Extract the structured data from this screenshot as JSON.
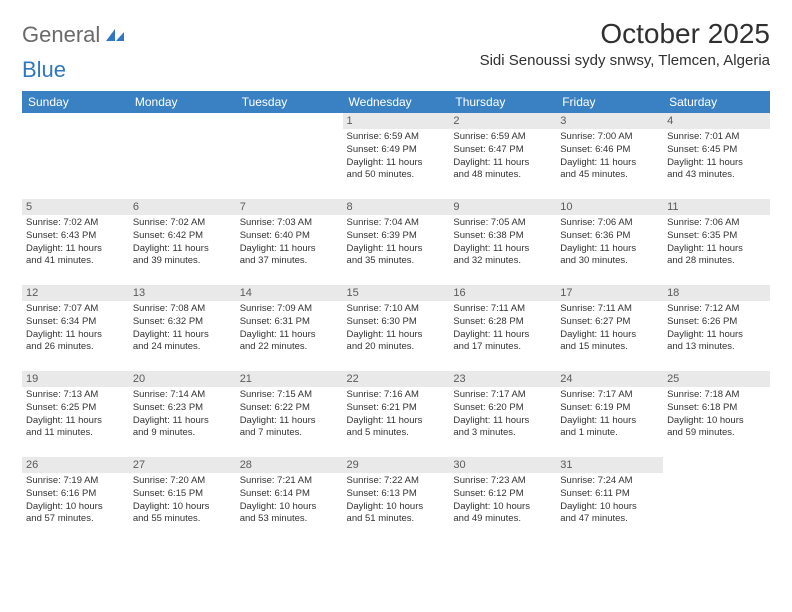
{
  "brand": {
    "part1": "General",
    "part2": "Blue"
  },
  "title": "October 2025",
  "location": "Sidi Senoussi sydy snwsy, Tlemcen, Algeria",
  "colors": {
    "header_bg": "#3a81c4",
    "header_text": "#ffffff",
    "daynum_bg": "#e9e9ea",
    "body_text": "#333333",
    "brand_gray": "#6a6a6a",
    "brand_blue": "#2f78bf",
    "page_bg": "#ffffff"
  },
  "fonts": {
    "title_size": 28,
    "location_size": 15,
    "dayhead_size": 12,
    "daynum_size": 11,
    "body_size": 9.5
  },
  "weekdays": [
    "Sunday",
    "Monday",
    "Tuesday",
    "Wednesday",
    "Thursday",
    "Friday",
    "Saturday"
  ],
  "weeks": [
    [
      null,
      null,
      null,
      {
        "n": "1",
        "sr": "Sunrise: 6:59 AM",
        "ss": "Sunset: 6:49 PM",
        "d1": "Daylight: 11 hours",
        "d2": "and 50 minutes."
      },
      {
        "n": "2",
        "sr": "Sunrise: 6:59 AM",
        "ss": "Sunset: 6:47 PM",
        "d1": "Daylight: 11 hours",
        "d2": "and 48 minutes."
      },
      {
        "n": "3",
        "sr": "Sunrise: 7:00 AM",
        "ss": "Sunset: 6:46 PM",
        "d1": "Daylight: 11 hours",
        "d2": "and 45 minutes."
      },
      {
        "n": "4",
        "sr": "Sunrise: 7:01 AM",
        "ss": "Sunset: 6:45 PM",
        "d1": "Daylight: 11 hours",
        "d2": "and 43 minutes."
      }
    ],
    [
      {
        "n": "5",
        "sr": "Sunrise: 7:02 AM",
        "ss": "Sunset: 6:43 PM",
        "d1": "Daylight: 11 hours",
        "d2": "and 41 minutes."
      },
      {
        "n": "6",
        "sr": "Sunrise: 7:02 AM",
        "ss": "Sunset: 6:42 PM",
        "d1": "Daylight: 11 hours",
        "d2": "and 39 minutes."
      },
      {
        "n": "7",
        "sr": "Sunrise: 7:03 AM",
        "ss": "Sunset: 6:40 PM",
        "d1": "Daylight: 11 hours",
        "d2": "and 37 minutes."
      },
      {
        "n": "8",
        "sr": "Sunrise: 7:04 AM",
        "ss": "Sunset: 6:39 PM",
        "d1": "Daylight: 11 hours",
        "d2": "and 35 minutes."
      },
      {
        "n": "9",
        "sr": "Sunrise: 7:05 AM",
        "ss": "Sunset: 6:38 PM",
        "d1": "Daylight: 11 hours",
        "d2": "and 32 minutes."
      },
      {
        "n": "10",
        "sr": "Sunrise: 7:06 AM",
        "ss": "Sunset: 6:36 PM",
        "d1": "Daylight: 11 hours",
        "d2": "and 30 minutes."
      },
      {
        "n": "11",
        "sr": "Sunrise: 7:06 AM",
        "ss": "Sunset: 6:35 PM",
        "d1": "Daylight: 11 hours",
        "d2": "and 28 minutes."
      }
    ],
    [
      {
        "n": "12",
        "sr": "Sunrise: 7:07 AM",
        "ss": "Sunset: 6:34 PM",
        "d1": "Daylight: 11 hours",
        "d2": "and 26 minutes."
      },
      {
        "n": "13",
        "sr": "Sunrise: 7:08 AM",
        "ss": "Sunset: 6:32 PM",
        "d1": "Daylight: 11 hours",
        "d2": "and 24 minutes."
      },
      {
        "n": "14",
        "sr": "Sunrise: 7:09 AM",
        "ss": "Sunset: 6:31 PM",
        "d1": "Daylight: 11 hours",
        "d2": "and 22 minutes."
      },
      {
        "n": "15",
        "sr": "Sunrise: 7:10 AM",
        "ss": "Sunset: 6:30 PM",
        "d1": "Daylight: 11 hours",
        "d2": "and 20 minutes."
      },
      {
        "n": "16",
        "sr": "Sunrise: 7:11 AM",
        "ss": "Sunset: 6:28 PM",
        "d1": "Daylight: 11 hours",
        "d2": "and 17 minutes."
      },
      {
        "n": "17",
        "sr": "Sunrise: 7:11 AM",
        "ss": "Sunset: 6:27 PM",
        "d1": "Daylight: 11 hours",
        "d2": "and 15 minutes."
      },
      {
        "n": "18",
        "sr": "Sunrise: 7:12 AM",
        "ss": "Sunset: 6:26 PM",
        "d1": "Daylight: 11 hours",
        "d2": "and 13 minutes."
      }
    ],
    [
      {
        "n": "19",
        "sr": "Sunrise: 7:13 AM",
        "ss": "Sunset: 6:25 PM",
        "d1": "Daylight: 11 hours",
        "d2": "and 11 minutes."
      },
      {
        "n": "20",
        "sr": "Sunrise: 7:14 AM",
        "ss": "Sunset: 6:23 PM",
        "d1": "Daylight: 11 hours",
        "d2": "and 9 minutes."
      },
      {
        "n": "21",
        "sr": "Sunrise: 7:15 AM",
        "ss": "Sunset: 6:22 PM",
        "d1": "Daylight: 11 hours",
        "d2": "and 7 minutes."
      },
      {
        "n": "22",
        "sr": "Sunrise: 7:16 AM",
        "ss": "Sunset: 6:21 PM",
        "d1": "Daylight: 11 hours",
        "d2": "and 5 minutes."
      },
      {
        "n": "23",
        "sr": "Sunrise: 7:17 AM",
        "ss": "Sunset: 6:20 PM",
        "d1": "Daylight: 11 hours",
        "d2": "and 3 minutes."
      },
      {
        "n": "24",
        "sr": "Sunrise: 7:17 AM",
        "ss": "Sunset: 6:19 PM",
        "d1": "Daylight: 11 hours",
        "d2": "and 1 minute."
      },
      {
        "n": "25",
        "sr": "Sunrise: 7:18 AM",
        "ss": "Sunset: 6:18 PM",
        "d1": "Daylight: 10 hours",
        "d2": "and 59 minutes."
      }
    ],
    [
      {
        "n": "26",
        "sr": "Sunrise: 7:19 AM",
        "ss": "Sunset: 6:16 PM",
        "d1": "Daylight: 10 hours",
        "d2": "and 57 minutes."
      },
      {
        "n": "27",
        "sr": "Sunrise: 7:20 AM",
        "ss": "Sunset: 6:15 PM",
        "d1": "Daylight: 10 hours",
        "d2": "and 55 minutes."
      },
      {
        "n": "28",
        "sr": "Sunrise: 7:21 AM",
        "ss": "Sunset: 6:14 PM",
        "d1": "Daylight: 10 hours",
        "d2": "and 53 minutes."
      },
      {
        "n": "29",
        "sr": "Sunrise: 7:22 AM",
        "ss": "Sunset: 6:13 PM",
        "d1": "Daylight: 10 hours",
        "d2": "and 51 minutes."
      },
      {
        "n": "30",
        "sr": "Sunrise: 7:23 AM",
        "ss": "Sunset: 6:12 PM",
        "d1": "Daylight: 10 hours",
        "d2": "and 49 minutes."
      },
      {
        "n": "31",
        "sr": "Sunrise: 7:24 AM",
        "ss": "Sunset: 6:11 PM",
        "d1": "Daylight: 10 hours",
        "d2": "and 47 minutes."
      },
      null
    ]
  ]
}
